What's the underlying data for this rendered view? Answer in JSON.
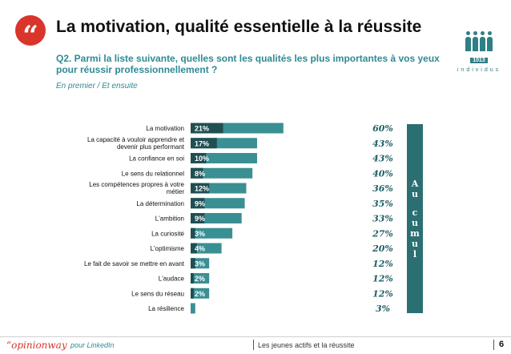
{
  "header": {
    "quote_glyph": "“",
    "title": "La motivation, qualité essentielle à la réussite",
    "question": "Q2. Parmi la liste suivante, quelles sont les qualités les plus importantes à vos yeux pour réussir professionnellement ?",
    "subnote": "En premier / Et ensuite",
    "sample_count": "1013",
    "sample_unit": "individus"
  },
  "chart_data": {
    "type": "bar",
    "orientation": "horizontal",
    "categories": [
      "La motivation",
      "La capacité à vouloir apprendre et devenir plus performant",
      "La confiance en soi",
      "Le sens du relationnel",
      "Les compétences propres à votre métier",
      "La détermination",
      "L'ambition",
      "La curiosité",
      "L'optimisme",
      "Le fait de savoir se mettre en avant",
      "L'audace",
      "Le sens du réseau",
      "La résilience"
    ],
    "series": [
      {
        "name": "En premier",
        "values": [
          21,
          17,
          10,
          8,
          12,
          9,
          9,
          3,
          4,
          3,
          2,
          2,
          null
        ],
        "labels": [
          "21%",
          "17%",
          "10%",
          "8%",
          "12%",
          "9%",
          "9%",
          "3%",
          "4%",
          "3%",
          "2%",
          "2%",
          ""
        ]
      },
      {
        "name": "Au cumul",
        "values": [
          60,
          43,
          43,
          40,
          36,
          35,
          33,
          27,
          20,
          12,
          12,
          12,
          3
        ],
        "labels": [
          "60%",
          "43%",
          "43%",
          "40%",
          "36%",
          "35%",
          "33%",
          "27%",
          "20%",
          "12%",
          "12%",
          "12%",
          "3%"
        ]
      }
    ],
    "cumul_label": "Au cumul",
    "colors": {
      "first": "#1f4f53",
      "cumul": "#3a8f93",
      "cumul_text": "#1e5f66"
    }
  },
  "footer": {
    "logo": "“opinionway",
    "left": "pour LinkedIn",
    "middle": "Les jeunes actifs et la réussite",
    "page": "6"
  }
}
